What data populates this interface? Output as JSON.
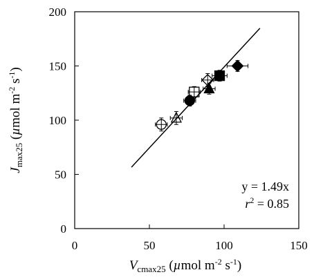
{
  "chart_data": {
    "type": "scatter",
    "xlim": [
      0,
      150
    ],
    "ylim": [
      0,
      200
    ],
    "x_ticks": [
      0,
      50,
      100,
      150
    ],
    "y_ticks": [
      0,
      50,
      100,
      150,
      200
    ],
    "x_tick_labels": [
      "0",
      "50",
      "100",
      "150"
    ],
    "y_tick_labels": [
      "0",
      "50",
      "100",
      "150",
      "200"
    ],
    "grid": false,
    "xlabel": {
      "symbol": "V",
      "subscript": "cmax25",
      "unit_open": " (",
      "unit_mu": "µ",
      "unit_text": "mol m",
      "unit_sup1": "-2",
      "unit_mid": " s",
      "unit_sup2": "-1",
      "unit_close": ")"
    },
    "ylabel": {
      "symbol": "J",
      "subscript": "max25",
      "unit_open": " (",
      "unit_mu": "µ",
      "unit_text": "mol m",
      "unit_sup1": "-2",
      "unit_mid": " s",
      "unit_sup2": "-1",
      "unit_close": ")"
    },
    "annotation": {
      "equation": "y = 1.49x",
      "r2_symbol": "r",
      "r2_sup": "2",
      "r2_value": " = 0.85"
    },
    "fit_line": {
      "slope": 1.49,
      "x_range": [
        38,
        124
      ]
    },
    "points": [
      {
        "marker": "open-circle",
        "x": 58,
        "y": 96,
        "xerr": 4,
        "yerr": 6
      },
      {
        "marker": "open-triangle",
        "x": 68,
        "y": 102,
        "xerr": 4,
        "yerr": 6
      },
      {
        "marker": "filled-circle",
        "x": 77,
        "y": 118,
        "xerr": 4,
        "yerr": 5
      },
      {
        "marker": "open-square",
        "x": 80,
        "y": 126,
        "xerr": 4,
        "yerr": 5
      },
      {
        "marker": "filled-triangle",
        "x": 90,
        "y": 129,
        "xerr": 4,
        "yerr": 5
      },
      {
        "marker": "open-diamond",
        "x": 89,
        "y": 137,
        "xerr": 4,
        "yerr": 6
      },
      {
        "marker": "filled-square",
        "x": 97,
        "y": 141,
        "xerr": 5,
        "yerr": 5
      },
      {
        "marker": "filled-diamond",
        "x": 109,
        "y": 150,
        "xerr": 7,
        "yerr": 5
      }
    ]
  }
}
